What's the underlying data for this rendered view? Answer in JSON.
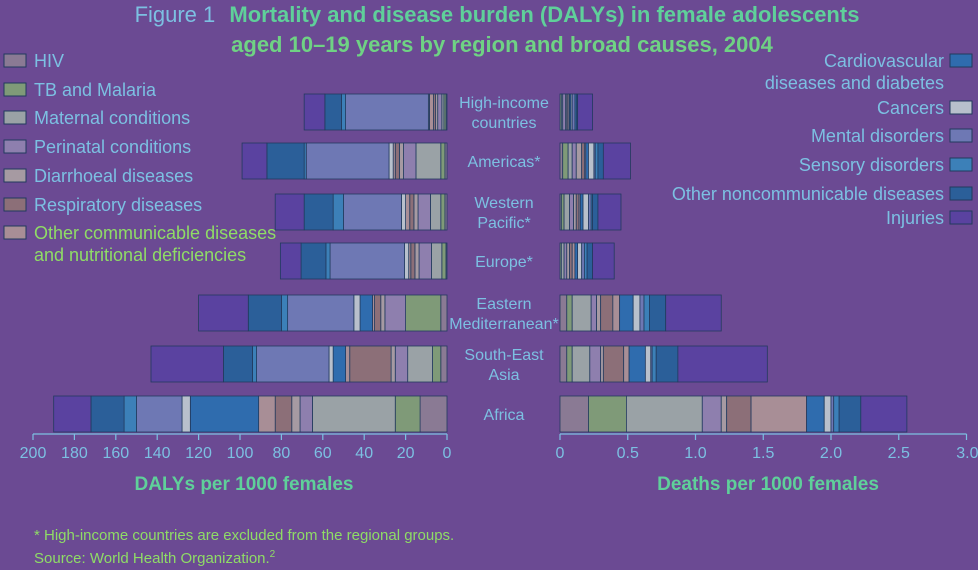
{
  "chart_data": {
    "type": "bar",
    "title_prefix": "Figure 1",
    "title_line1": "Mortality and disease burden (DALYs) in female adolescents",
    "title_line2": "aged 10–19 years by region and broad causes, 2004",
    "categories": [
      [
        "High-income",
        "countries"
      ],
      [
        "Americas*"
      ],
      [
        "Western",
        "Pacific*"
      ],
      [
        "Europe*"
      ],
      [
        "Eastern",
        "Mediterranean*"
      ],
      [
        "South-East",
        "Asia"
      ],
      [
        "Africa"
      ]
    ],
    "series": [
      {
        "name": [
          "HIV"
        ],
        "color": "#8a7a94"
      },
      {
        "name": [
          "TB and Malaria"
        ],
        "color": "#7f9a78"
      },
      {
        "name": [
          "Maternal conditions"
        ],
        "color": "#9aa2a6"
      },
      {
        "name": [
          "Perinatal conditions"
        ],
        "color": "#8e7fae"
      },
      {
        "name": [
          "Diarrhoeal diseases"
        ],
        "color": "#a69aa2"
      },
      {
        "name": [
          "Respiratory diseases"
        ],
        "color": "#8c6f78"
      },
      {
        "name": [
          "Other communicable diseases",
          "and nutritional deficiencies"
        ],
        "color": "#a88e96"
      },
      {
        "name": [
          "Cardiovascular",
          "diseases and diabetes"
        ],
        "color": "#2f6cae"
      },
      {
        "name": [
          "Cancers"
        ],
        "color": "#b8c0cc"
      },
      {
        "name": [
          "Mental disorders"
        ],
        "color": "#6e78b4"
      },
      {
        "name": [
          "Sensory disorders"
        ],
        "color": "#3c80b8"
      },
      {
        "name": [
          "Other noncommunicable diseases"
        ],
        "color": "#2b5f99"
      },
      {
        "name": [
          "Injuries"
        ],
        "color": "#5a42a0"
      }
    ],
    "dalys": [
      [
        0.5,
        1,
        1,
        2,
        1,
        1,
        2,
        0,
        0.5,
        40,
        2,
        8,
        10
      ],
      [
        1,
        2,
        12,
        6,
        2,
        2,
        1,
        0,
        2,
        40,
        1,
        18,
        12
      ],
      [
        1,
        2,
        5,
        6,
        2,
        2,
        2,
        0,
        2,
        28,
        5,
        14,
        14
      ],
      [
        0.5,
        2,
        5,
        6,
        2,
        2,
        1,
        0,
        2,
        36,
        2,
        12,
        10
      ],
      [
        3,
        17,
        0,
        10,
        2,
        3,
        1,
        6,
        3,
        32,
        3,
        16,
        24
      ],
      [
        3,
        4,
        12,
        6,
        2,
        20,
        2,
        6,
        2,
        35,
        2,
        14,
        35
      ],
      [
        13,
        12,
        40,
        6,
        4,
        8,
        8,
        33,
        4,
        22,
        6,
        16,
        18
      ]
    ],
    "deaths": [
      [
        0,
        0.01,
        0.01,
        0.02,
        0.01,
        0.01,
        0.01,
        0.01,
        0.01,
        0.02,
        0.01,
        0.01,
        0.11
      ],
      [
        0.02,
        0.04,
        0.03,
        0.03,
        0.04,
        0.02,
        0.01,
        0.02,
        0.04,
        0.01,
        0.02,
        0.04,
        0.2
      ],
      [
        0.01,
        0.02,
        0.04,
        0.03,
        0.02,
        0.02,
        0.01,
        0.02,
        0.04,
        0.02,
        0.01,
        0.04,
        0.17
      ],
      [
        0,
        0.01,
        0.02,
        0.02,
        0.02,
        0.02,
        0.02,
        0.02,
        0.03,
        0.02,
        0.02,
        0.04,
        0.16
      ],
      [
        0.05,
        0.04,
        0.14,
        0.04,
        0.03,
        0.09,
        0.05,
        0.1,
        0.05,
        0.03,
        0.04,
        0.12,
        0.41
      ],
      [
        0.05,
        0.04,
        0.13,
        0.08,
        0.02,
        0.15,
        0.04,
        0.12,
        0.04,
        0.01,
        0.03,
        0.16,
        0.66
      ],
      [
        0.21,
        0.28,
        0.56,
        0.14,
        0.04,
        0.18,
        0.41,
        0.13,
        0.05,
        0.02,
        0.04,
        0.16,
        0.34
      ]
    ],
    "left_axis": {
      "title": "DALYs per 1000 females",
      "range": [
        0,
        200
      ],
      "ticks": [
        "200",
        "180",
        "160",
        "140",
        "120",
        "100",
        "80",
        "60",
        "40",
        "20",
        "0"
      ],
      "tick_values": [
        200,
        180,
        160,
        140,
        120,
        100,
        80,
        60,
        40,
        20,
        0
      ]
    },
    "right_axis": {
      "title": "Deaths per 1000 females",
      "range": [
        0,
        3.0
      ],
      "ticks": [
        "0",
        "0.5",
        "1.0",
        "1.5",
        "2.0",
        "2.5",
        "3.0"
      ],
      "tick_values": [
        0,
        0.5,
        1.0,
        1.5,
        2.0,
        2.5,
        3.0
      ]
    },
    "grid": false,
    "legend_left": "top-left",
    "legend_right": "top-right"
  },
  "footnote": "* High-income countries are excluded from the regional groups.",
  "source": "Source: World Health Organization.",
  "source_sup": "2",
  "colors": {
    "background": "#6b4a93",
    "text_light": "#7cc0e2",
    "text_title": "#5fd09a",
    "text_green": "#8fdc66",
    "bar_stroke": "#223a5e"
  }
}
